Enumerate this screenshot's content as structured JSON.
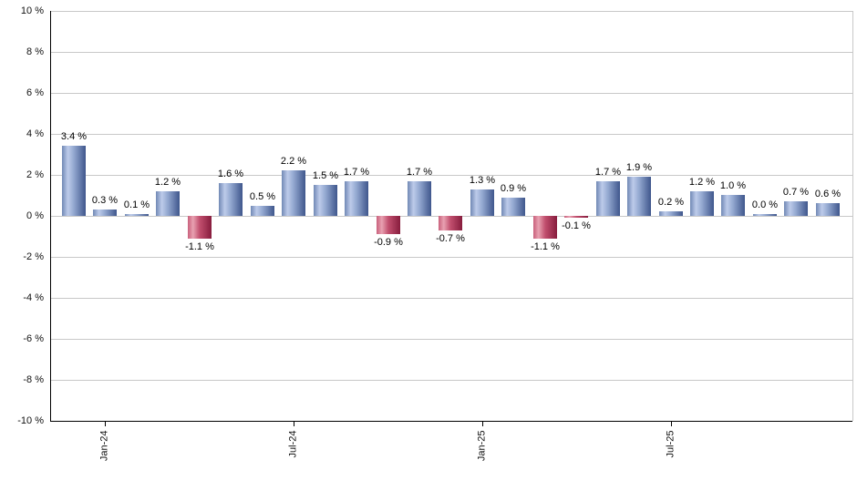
{
  "chart_data": {
    "type": "bar",
    "title": "",
    "xlabel": "",
    "ylabel": "",
    "unit": "%",
    "ylim": [
      -10,
      10
    ],
    "grid": true,
    "values": [
      3.4,
      0.3,
      0.1,
      1.2,
      -1.1,
      1.6,
      0.5,
      2.2,
      1.5,
      1.7,
      -0.9,
      1.7,
      -0.7,
      1.3,
      0.9,
      -1.1,
      -0.1,
      1.7,
      1.9,
      0.2,
      1.2,
      1.0,
      0.0,
      0.7,
      0.6
    ],
    "bar_labels": [
      "3.4 %",
      "0.3 %",
      "0.1 %",
      "1.2 %",
      "-1.1 %",
      "1.6 %",
      "0.5 %",
      "2.2 %",
      "1.5 %",
      "1.7 %",
      "-0.9 %",
      "1.7 %",
      "-0.7 %",
      "1.3 %",
      "0.9 %",
      "-1.1 %",
      "-0.1 %",
      "1.7 %",
      "1.9 %",
      "0.2 %",
      "1.2 %",
      "1.0 %",
      "0.0 %",
      "0.7 %",
      "0.6 %"
    ],
    "x_ticks": [
      {
        "label": "Jan-24",
        "bar_index": 1
      },
      {
        "label": "Jul-24",
        "bar_index": 7
      },
      {
        "label": "Jan-25",
        "bar_index": 13
      },
      {
        "label": "Jul-25",
        "bar_index": 19
      }
    ],
    "y_ticks": [
      {
        "label": "10 %",
        "value": 10
      },
      {
        "label": "8 %",
        "value": 8
      },
      {
        "label": "6 %",
        "value": 6
      },
      {
        "label": "4 %",
        "value": 4
      },
      {
        "label": "2 %",
        "value": 2
      },
      {
        "label": "0 %",
        "value": 0
      },
      {
        "label": "-2 %",
        "value": -2
      },
      {
        "label": "-4 %",
        "value": -4
      },
      {
        "label": "-6 %",
        "value": -6
      },
      {
        "label": "-8 %",
        "value": -8
      },
      {
        "label": "-10 %",
        "value": -10
      }
    ],
    "colors": {
      "positive_bar_light": "#bdcbea",
      "positive_bar_mid": "#7189b5",
      "positive_bar_dark": "#3f568c",
      "negative_bar_light": "#e8a1b1",
      "negative_bar_mid": "#c9607c",
      "negative_bar_dark": "#871c3d",
      "gridline": "#c8c8c8",
      "axis": "#000000",
      "label_text": "#000000",
      "background": "#ffffff"
    }
  }
}
